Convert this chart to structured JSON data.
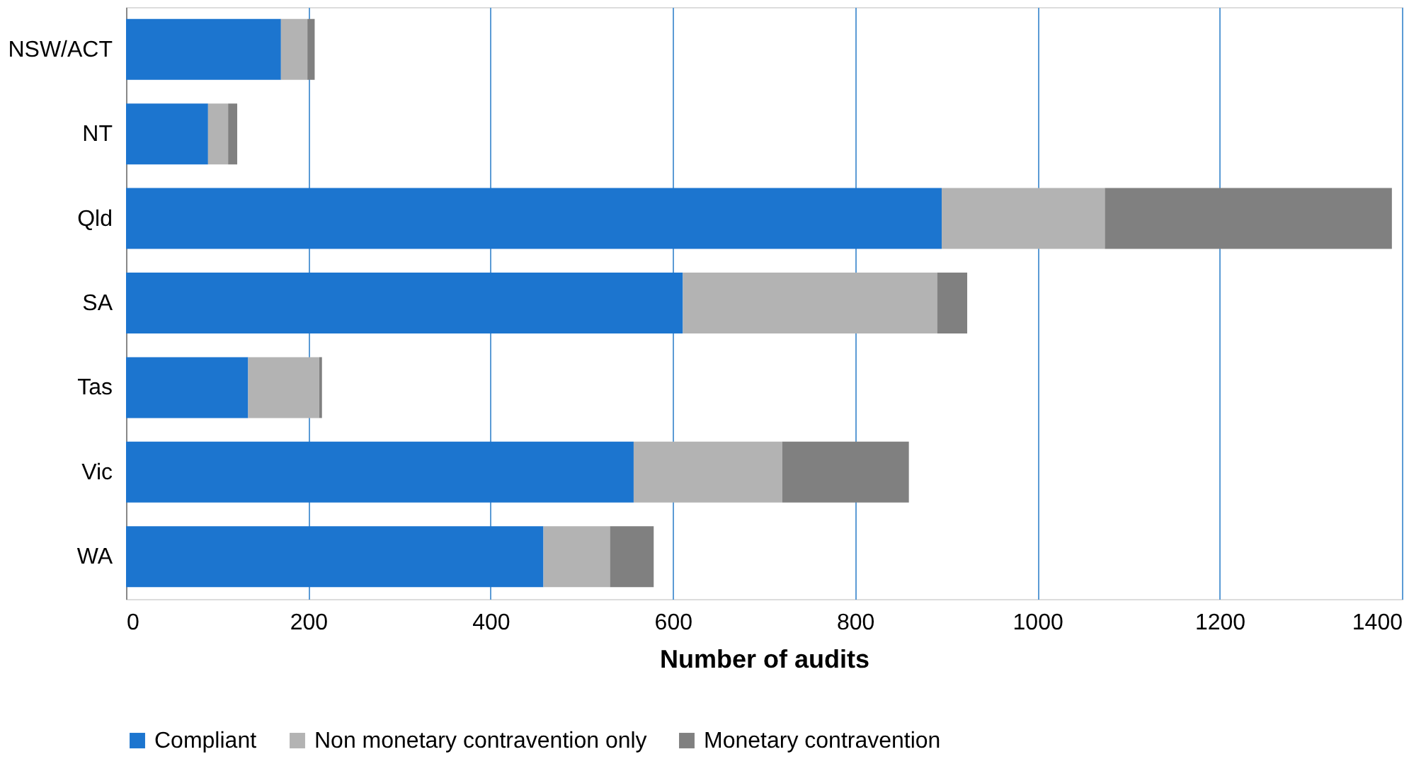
{
  "chart_data": {
    "type": "bar",
    "orientation": "horizontal",
    "stacked": true,
    "xlabel": "Number of audits",
    "categories": [
      "NSW/ACT",
      "NT",
      "Qld",
      "SA",
      "Tas",
      "Vic",
      "WA"
    ],
    "series": [
      {
        "name": "Compliant",
        "color": "#1c75cf",
        "values": [
          170,
          90,
          895,
          611,
          134,
          557,
          458
        ]
      },
      {
        "name": "Non monetary contravention only",
        "color": "#b3b3b3",
        "values": [
          29,
          22,
          179,
          279,
          78,
          163,
          73
        ]
      },
      {
        "name": "Monetary contravention",
        "color": "#808080",
        "values": [
          8,
          10,
          315,
          33,
          3,
          139,
          48
        ]
      }
    ],
    "xlim": [
      0,
      1400
    ],
    "xticks": [
      0,
      200,
      400,
      600,
      800,
      1000,
      1200,
      1400
    ],
    "grid": "x",
    "legend": "bottom"
  }
}
